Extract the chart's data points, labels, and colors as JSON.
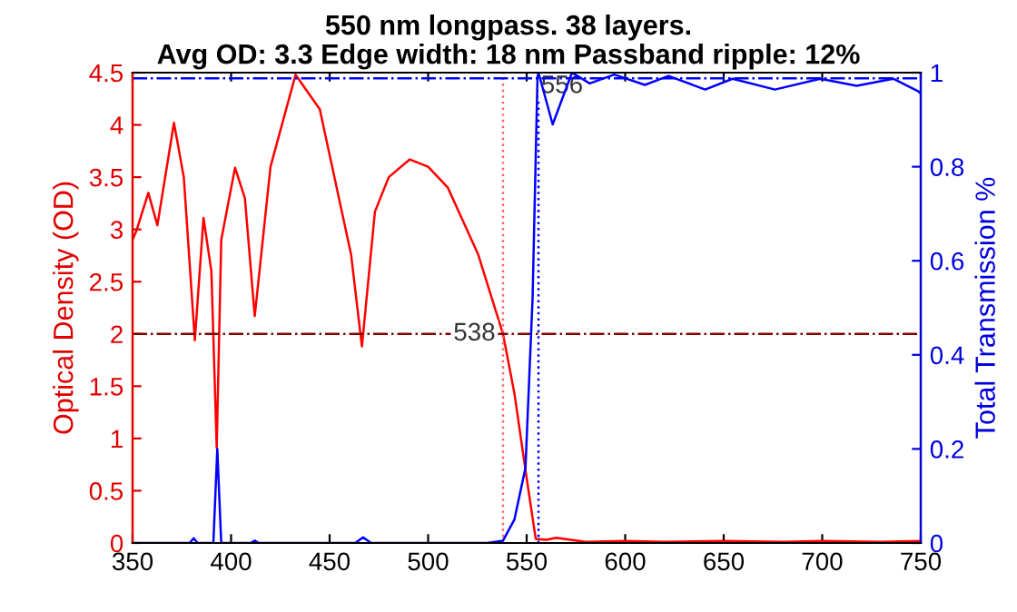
{
  "chart_data": {
    "type": "line",
    "title": "550 nm longpass. 38 layers.",
    "subtitle": "Avg OD: 3.3 Edge width: 18 nm Passband ripple: 12%",
    "ylabel": "Optical Density (OD)",
    "y2label": "Total Transmission %",
    "xlim": [
      350,
      750
    ],
    "xticks": [
      350,
      400,
      450,
      500,
      550,
      600,
      650,
      700,
      750
    ],
    "ylim": [
      0,
      4.5
    ],
    "yticks": [
      0,
      0.5,
      1,
      1.5,
      2,
      2.5,
      3,
      3.5,
      4,
      4.5
    ],
    "y2lim": [
      0,
      1
    ],
    "y2ticks": [
      0,
      0.2,
      0.4,
      0.6,
      0.8,
      1
    ],
    "grid": false,
    "legend": false,
    "line_style": "solid",
    "marker": "none",
    "series": [
      {
        "color": "#ff0000",
        "x": [
          350,
          352,
          358,
          362.6,
          371,
          376,
          381.6,
          386,
          390,
          392.7,
          395,
          402,
          407,
          412,
          420,
          432.7,
          445,
          460.9,
          466.4,
          473,
          480,
          490.7,
          500,
          510,
          525.4,
          538,
          543.8,
          550,
          554.6,
          560,
          565,
          580,
          600,
          620,
          650,
          680,
          700,
          730,
          750
        ],
        "values": [
          2.9,
          2.99,
          3.35,
          3.04,
          4.02,
          3.5,
          1.94,
          3.11,
          2.6,
          0.91,
          2.9,
          3.59,
          3.3,
          2.17,
          3.6,
          4.48,
          4.15,
          2.76,
          1.88,
          3.17,
          3.5,
          3.67,
          3.6,
          3.4,
          2.76,
          2.0,
          1.43,
          0.62,
          0.04,
          0.03,
          0.05,
          0.01,
          0.02,
          0.01,
          0.02,
          0.01,
          0.02,
          0.01,
          0.02
        ]
      },
      {
        "color": "#0000ff",
        "axis": "y2",
        "x": [
          350,
          379,
          381,
          383,
          391,
          393,
          395,
          410,
          412,
          414,
          463,
          467,
          471,
          530,
          538,
          543.8,
          549.4,
          553,
          555.5,
          556,
          563.2,
          573,
          582,
          594.5,
          610,
          622,
          640.6,
          654.5,
          676,
          699,
          717.5,
          736,
          748.8,
          750
        ],
        "values": [
          0,
          0,
          0.01,
          0,
          0,
          0.2,
          0,
          0,
          0.005,
          0,
          0,
          0.012,
          0,
          0,
          0.005,
          0.05,
          0.16,
          0.52,
          0.99,
          1.0,
          0.89,
          1.0,
          0.977,
          0.996,
          0.974,
          0.993,
          0.964,
          0.987,
          0.964,
          0.987,
          0.972,
          0.987,
          0.96,
          0.955
        ]
      }
    ],
    "ref_lines": [
      {
        "axis": "x",
        "value": 538,
        "color": "#ff6666",
        "line_style": "dotted"
      },
      {
        "axis": "x",
        "value": 556,
        "color": "#0000ff",
        "line_style": "dotted"
      },
      {
        "axis": "y",
        "value": 2,
        "color": "#800000",
        "line_style": "dashdot"
      },
      {
        "axis": "y2",
        "value": 0.988,
        "color": "#0000ff",
        "line_style": "dashdot"
      }
    ],
    "annotations": [
      {
        "text": "538",
        "x": 538,
        "y": 2
      },
      {
        "text": "556",
        "x": 556,
        "y": 4.4
      }
    ]
  }
}
